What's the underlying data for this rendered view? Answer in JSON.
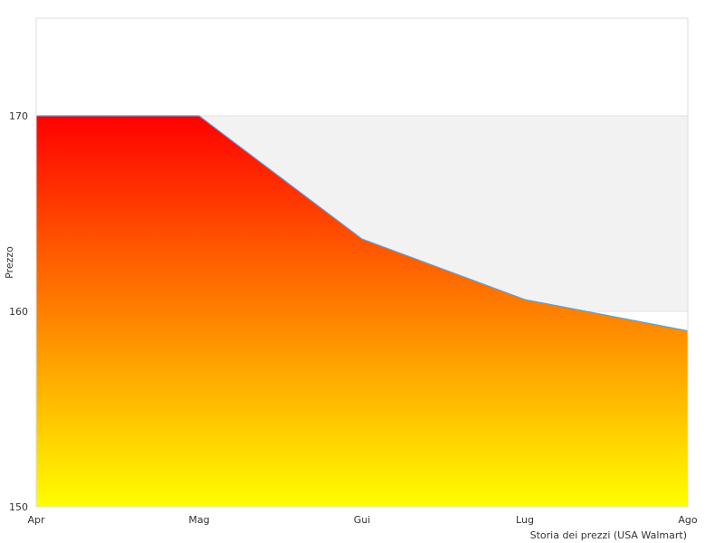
{
  "chart_data": {
    "type": "area",
    "title": "",
    "xlabel": "Storia dei prezzi (USA Walmart)",
    "ylabel": "Prezzo",
    "categories": [
      "Apr",
      "Mag",
      "Gui",
      "Lug",
      "Ago"
    ],
    "series": [
      {
        "values": [
          170,
          170,
          163.7,
          160.6,
          159.0
        ]
      }
    ],
    "ylim": [
      150,
      175
    ],
    "yticks": [
      150,
      160,
      170
    ],
    "bands": [
      {
        "from": 160,
        "to": 170,
        "color": "#f2f2f2"
      }
    ],
    "grid": false,
    "legend": "none",
    "colors": {
      "line": "#5aa0e0",
      "gradient_top": "#ff0000",
      "gradient_mid": "#ff8000",
      "gradient_bottom": "#ffff00",
      "plot_border": "#dddddd",
      "band_line": "#e0e0e0"
    }
  }
}
